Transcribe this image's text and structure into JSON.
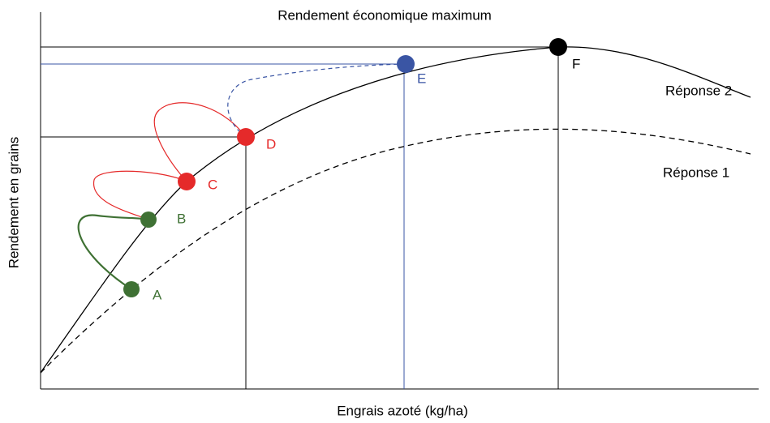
{
  "title": "Rendement économique maximum",
  "x_axis_label": "Engrais azoté (kg/ha)",
  "y_axis_label": "Rendement en grains",
  "curves": [
    {
      "label": "Réponse 2"
    },
    {
      "label": "Réponse 1"
    }
  ],
  "points": [
    {
      "label": "A"
    },
    {
      "label": "B"
    },
    {
      "label": "C"
    },
    {
      "label": "D"
    },
    {
      "label": "E"
    },
    {
      "label": "F"
    }
  ]
}
